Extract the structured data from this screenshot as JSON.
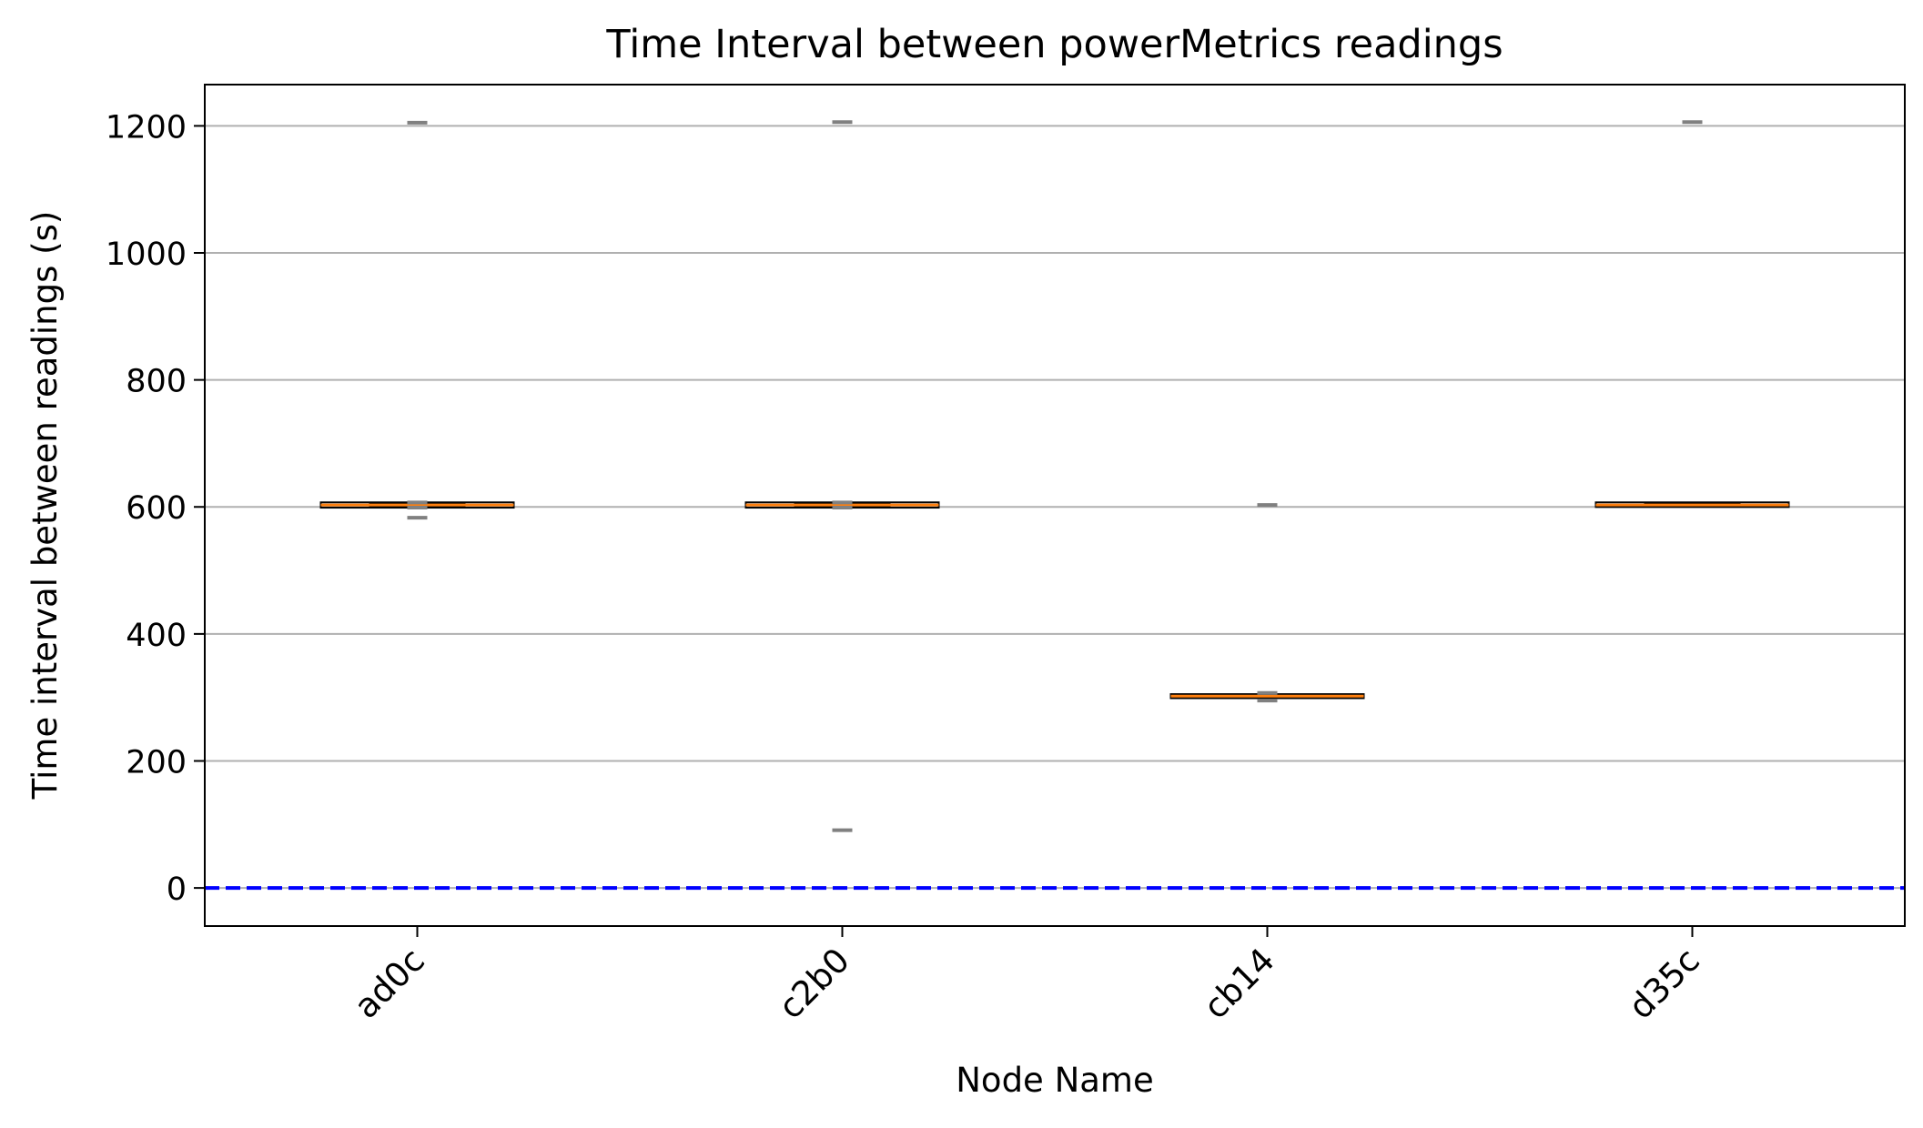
{
  "chart_data": {
    "type": "box",
    "title": "Time Interval between powerMetrics readings",
    "xlabel": "Node Name",
    "ylabel": "Time interval between readings (s)",
    "ylim": [
      -60,
      1265
    ],
    "yticks": [
      0,
      200,
      400,
      600,
      800,
      1000,
      1200
    ],
    "grid": "horizontal",
    "categories": [
      "ad0c",
      "c2b0",
      "cb14",
      "d35c"
    ],
    "boxes": [
      {
        "category": "ad0c",
        "q1": 601,
        "median": 603,
        "q3": 605,
        "whisker_low": 601,
        "whisker_high": 605,
        "outliers": [
          1205,
          607,
          599,
          583
        ]
      },
      {
        "category": "c2b0",
        "q1": 601,
        "median": 603,
        "q3": 605,
        "whisker_low": 601,
        "whisker_high": 605,
        "outliers": [
          1206,
          607,
          599,
          91
        ]
      },
      {
        "category": "cb14",
        "q1": 301,
        "median": 302,
        "q3": 303,
        "whisker_low": 301,
        "whisker_high": 303,
        "outliers": [
          603,
          307,
          295
        ]
      },
      {
        "category": "d35c",
        "q1": 602,
        "median": 603,
        "q3": 605,
        "whisker_low": 602,
        "whisker_high": 605,
        "outliers": [
          1206
        ]
      }
    ],
    "reference_line": {
      "y": 0,
      "style": "dashed",
      "color": "#0000ff"
    },
    "colors": {
      "median": "#ff7f0e",
      "box": "#000000",
      "outlier": "#808080",
      "grid": "#b0b0b0",
      "reference": "#0000ff"
    }
  }
}
